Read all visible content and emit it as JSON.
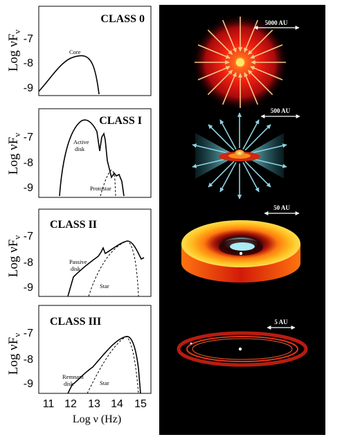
{
  "panels": [
    {
      "class_label": "CLASS 0",
      "y_label": "Log νF",
      "y_sub": "ν",
      "y_ticks": [
        "-7",
        "-8",
        "-9"
      ],
      "annotations": [
        "Core"
      ],
      "scale": "5000 AU"
    },
    {
      "class_label": "CLASS I",
      "y_label": "Log νF",
      "y_sub": "ν",
      "y_ticks": [
        "-7",
        "-8",
        "-9"
      ],
      "annotations": [
        "Active",
        "disk",
        "Protostar"
      ],
      "scale": "500 AU"
    },
    {
      "class_label": "CLASS II",
      "y_label": "Log νF",
      "y_sub": "ν",
      "y_ticks": [
        "-7",
        "-8",
        "-9"
      ],
      "annotations": [
        "Passive",
        "disk",
        "Star"
      ],
      "scale": "50 AU"
    },
    {
      "class_label": "CLASS III",
      "y_label": "Log νF",
      "y_sub": "ν",
      "y_ticks": [
        "-7",
        "-8",
        "-9"
      ],
      "annotations": [
        "Remnant",
        "disk",
        "Star"
      ],
      "scale": "5 AU"
    }
  ],
  "x_axis": {
    "ticks": [
      "11",
      "12",
      "13",
      "14",
      "15"
    ],
    "label": "Log ν (Hz)"
  },
  "colors": {
    "right_background": "#000000",
    "arrow_warm": "#f6c88a",
    "arrow_cold": "#8fd3e0",
    "disk_red": "#cc2a10",
    "disk_yellow": "#ffcc22"
  }
}
